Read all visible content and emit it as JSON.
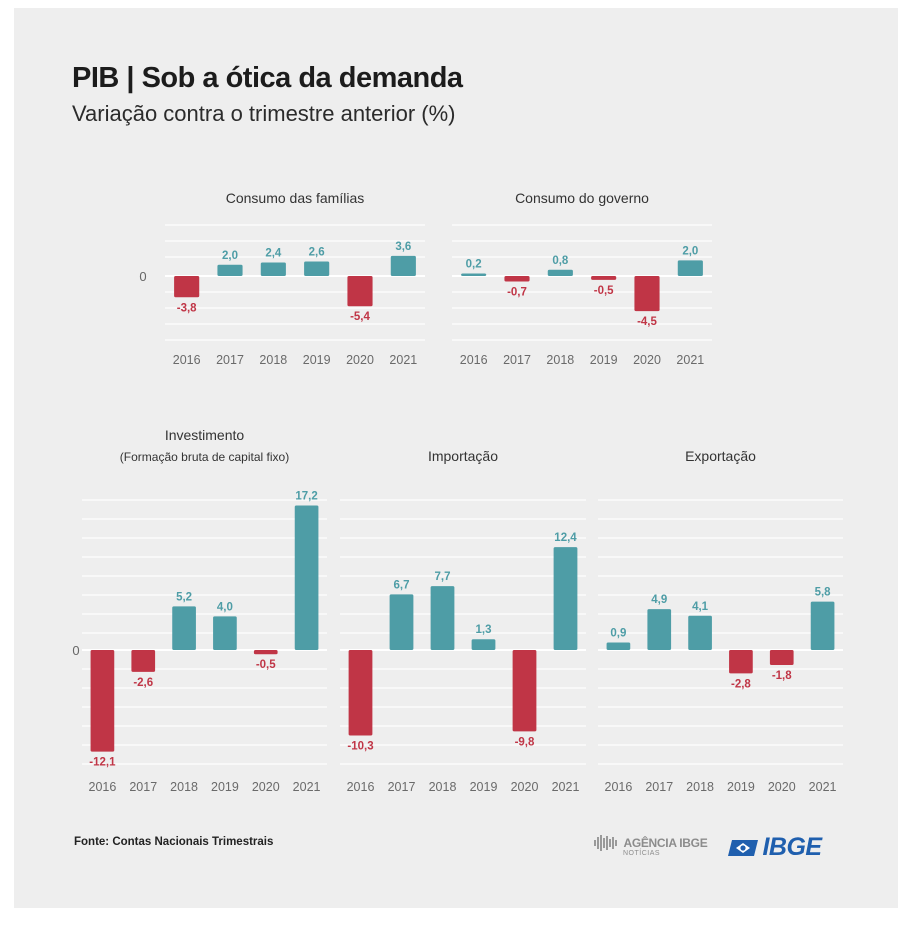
{
  "header": {
    "title": "PIB | Sob a ótica da demanda",
    "subtitle": "Variação contra o trimestre anterior (%)"
  },
  "colors": {
    "positive": "#4e9da6",
    "negative": "#c03546",
    "grid": "#ffffff",
    "label": "#555555",
    "background": "#eeeeee"
  },
  "chart_data": [
    {
      "type": "bar",
      "title": "Consumo das famílias",
      "categories": [
        "2016",
        "2017",
        "2018",
        "2019",
        "2020",
        "2021"
      ],
      "values": [
        -3.8,
        2.0,
        2.4,
        2.6,
        -5.4,
        3.6
      ],
      "value_labels": [
        "-3,8",
        "2,0",
        "2,4",
        "2,6",
        "-5,4",
        "3,6"
      ],
      "zero_label": "0"
    },
    {
      "type": "bar",
      "title": "Consumo do governo",
      "categories": [
        "2016",
        "2017",
        "2018",
        "2019",
        "2020",
        "2021"
      ],
      "values": [
        0.2,
        -0.7,
        0.8,
        -0.5,
        -4.5,
        2.0
      ],
      "value_labels": [
        "0,2",
        "-0,7",
        "0,8",
        "-0,5",
        "-4,5",
        "2,0"
      ]
    },
    {
      "type": "bar",
      "title": "Investimento",
      "subtitle": "(Formação bruta de capital fixo)",
      "categories": [
        "2016",
        "2017",
        "2018",
        "2019",
        "2020",
        "2021"
      ],
      "values": [
        -12.1,
        -2.6,
        5.2,
        4.0,
        -0.5,
        17.2
      ],
      "value_labels": [
        "-12,1",
        "-2,6",
        "5,2",
        "4,0",
        "-0,5",
        "17,2"
      ],
      "zero_label": "0"
    },
    {
      "type": "bar",
      "title": "Importação",
      "categories": [
        "2016",
        "2017",
        "2018",
        "2019",
        "2020",
        "2021"
      ],
      "values": [
        -10.3,
        6.7,
        7.7,
        1.3,
        -9.8,
        12.4
      ],
      "value_labels": [
        "-10,3",
        "6,7",
        "7,7",
        "1,3",
        "-9,8",
        "12,4"
      ]
    },
    {
      "type": "bar",
      "title": "Exportação",
      "categories": [
        "2016",
        "2017",
        "2018",
        "2019",
        "2020",
        "2021"
      ],
      "values": [
        0.9,
        4.9,
        4.1,
        -2.8,
        -1.8,
        5.8
      ],
      "value_labels": [
        "0,9",
        "4,9",
        "4,1",
        "-2,8",
        "-1,8",
        "5,8"
      ]
    }
  ],
  "footer": {
    "source": "Fonte: Contas Nacionais Trimestrais",
    "agencia_logo": "AGÊNCIA IBGE",
    "agencia_sub": "NOTÍCIAS",
    "ibge_logo": "IBGE"
  }
}
